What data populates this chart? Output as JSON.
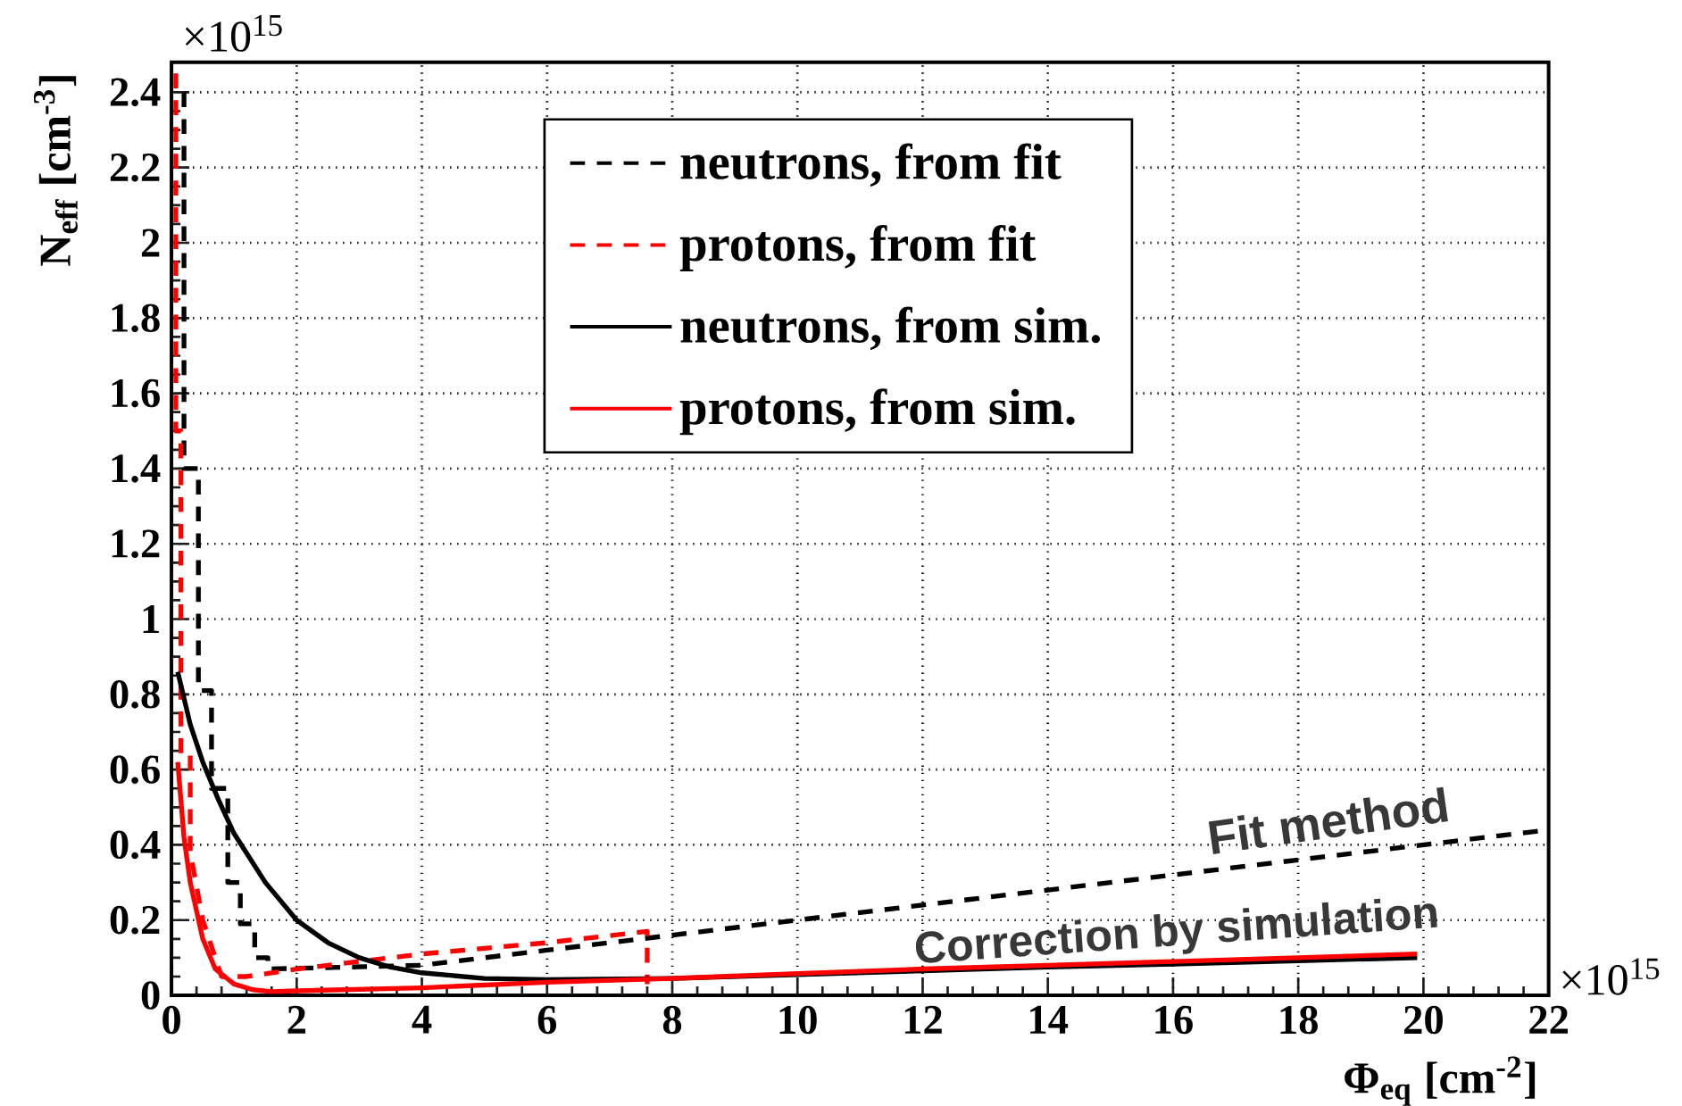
{
  "chart_data": {
    "type": "line",
    "xlabel": "Φ$_{eq}$ [cm$^{-2}$]",
    "ylabel": "N$_{eff}$ [cm$^{-3}$]",
    "xlim": [
      0,
      22
    ],
    "ylim": [
      0,
      2.48
    ],
    "xticks": [
      0,
      2,
      4,
      6,
      8,
      10,
      12,
      14,
      16,
      18,
      20,
      22
    ],
    "yticks": [
      0,
      0.2,
      0.4,
      0.6,
      0.8,
      1,
      1.2,
      1.4,
      1.6,
      1.8,
      2,
      2.2,
      2.4
    ],
    "grid": true,
    "legend": "top",
    "annotations": [
      "×10$^{15}$",
      "×10$^{15}$",
      "Fit method",
      "Correction by simulation"
    ],
    "series": [
      {
        "name": "neutrons, from fit",
        "color": "#000000",
        "line_style": "dashed",
        "x": [
          0.2,
          0.2,
          0.43,
          0.43,
          0.64,
          0.64,
          0.9,
          0.9,
          1.1,
          1.1,
          1.33,
          1.33,
          1.54,
          1.54,
          4,
          6,
          8,
          10,
          14,
          18,
          22
        ],
        "values": [
          2.4,
          1.4,
          1.4,
          0.81,
          0.81,
          0.55,
          0.55,
          0.3,
          0.3,
          0.19,
          0.19,
          0.1,
          0.1,
          0.07,
          0.08,
          0.12,
          0.16,
          0.2,
          0.28,
          0.36,
          0.44
        ]
      },
      {
        "name": "protons, from fit",
        "color": "#ff0000",
        "line_style": "dashed",
        "x": [
          0.07,
          0.07,
          0.15,
          0.15,
          0.3,
          0.3,
          0.5,
          0.8,
          1.2,
          2,
          4,
          6,
          7.6,
          7.6
        ],
        "values": [
          2.45,
          1.5,
          1.5,
          0.64,
          0.64,
          0.38,
          0.2,
          0.05,
          0.05,
          0.07,
          0.11,
          0.14,
          0.17,
          0.03
        ]
      },
      {
        "name": "neutrons, from sim.",
        "color": "#000000",
        "line_style": "solid",
        "x": [
          0.1,
          0.3,
          0.5,
          0.75,
          1,
          1.5,
          2,
          2.5,
          3,
          3.5,
          4,
          5,
          6,
          8,
          10,
          12,
          14,
          16,
          18,
          19.9
        ],
        "values": [
          0.86,
          0.72,
          0.62,
          0.52,
          0.43,
          0.3,
          0.2,
          0.14,
          0.1,
          0.075,
          0.06,
          0.045,
          0.042,
          0.045,
          0.055,
          0.065,
          0.075,
          0.083,
          0.092,
          0.1
        ]
      },
      {
        "name": "protons, from sim.",
        "color": "#ff0000",
        "line_style": "solid",
        "x": [
          0.1,
          0.2,
          0.3,
          0.5,
          0.7,
          1,
          1.3,
          1.6,
          2,
          4,
          6,
          8,
          10,
          12,
          14,
          16,
          18,
          19.9
        ],
        "values": [
          0.62,
          0.42,
          0.3,
          0.15,
          0.07,
          0.03,
          0.015,
          0.01,
          0.012,
          0.02,
          0.035,
          0.045,
          0.058,
          0.07,
          0.08,
          0.09,
          0.1,
          0.11
        ]
      }
    ]
  }
}
